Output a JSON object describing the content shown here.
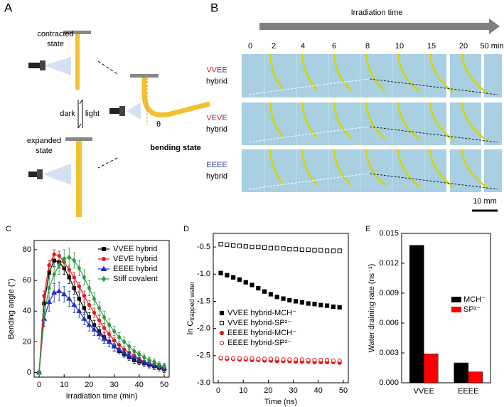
{
  "panel_a": {
    "label": "A",
    "contracted": [
      "contracted",
      "state"
    ],
    "dark": "dark",
    "light": "light",
    "expanded": [
      "expanded",
      "state"
    ],
    "theta": "θ",
    "bending": "bending state"
  },
  "panel_b": {
    "label": "B",
    "arrow_label": "Irradiation time",
    "times": [
      "0",
      "2",
      "4",
      "6",
      "8",
      "10",
      "15",
      "20",
      "50 min"
    ],
    "rows": [
      {
        "name": "VVEE",
        "sub": "hybrid"
      },
      {
        "name": "VEVE",
        "sub": "hybrid"
      },
      {
        "name": "EEEE",
        "sub": "hybrid"
      }
    ],
    "scale_bar": "10 mm"
  },
  "chart_data": [
    {
      "type": "line",
      "panel": "C",
      "xlabel": "Irradiation time (min)",
      "ylabel": "Bending angle (°)",
      "x": [
        0,
        2,
        4,
        6,
        8,
        10,
        12,
        14,
        16,
        18,
        20,
        22,
        24,
        26,
        28,
        30,
        32,
        34,
        36,
        38,
        40,
        42,
        44,
        46,
        48,
        50
      ],
      "xlim": [
        -2,
        52
      ],
      "xticks": [
        0,
        10,
        20,
        30,
        40,
        50
      ],
      "ylim": [
        -3,
        86
      ],
      "yticks": [
        0,
        20,
        40,
        60,
        80
      ],
      "legend": "upper right",
      "series": [
        {
          "name": "VVEE hybrid",
          "color": "#000000",
          "marker": "square",
          "values": [
            0,
            45,
            65,
            73,
            72,
            68,
            62,
            55,
            48,
            42,
            36,
            31,
            27,
            23,
            20,
            17,
            14,
            12,
            10,
            8,
            7,
            6,
            5,
            4,
            3,
            2
          ],
          "errors": [
            1,
            4,
            4,
            4,
            4,
            4,
            4,
            4,
            4,
            4,
            3,
            3,
            3,
            3,
            3,
            3,
            2,
            2,
            2,
            2,
            2,
            2,
            2,
            2,
            2,
            2
          ]
        },
        {
          "name": "VEVE hybrid",
          "color": "#e41a1c",
          "marker": "circle",
          "values": [
            0,
            50,
            70,
            77,
            76,
            72,
            67,
            62,
            56,
            50,
            44,
            39,
            34,
            29,
            25,
            21,
            18,
            15,
            13,
            11,
            9,
            7,
            6,
            5,
            4,
            3
          ],
          "errors": [
            1,
            3,
            3,
            3,
            3,
            3,
            3,
            3,
            3,
            3,
            3,
            3,
            3,
            3,
            2,
            2,
            2,
            2,
            2,
            2,
            2,
            2,
            2,
            2,
            2,
            2
          ]
        },
        {
          "name": "EEEE hybrid",
          "color": "#1f2fbf",
          "marker": "triangle",
          "values": [
            0,
            35,
            46,
            52,
            53,
            51,
            48,
            44,
            40,
            35,
            31,
            28,
            25,
            22,
            20,
            17,
            15,
            13,
            11,
            10,
            8,
            7,
            6,
            5,
            4,
            3
          ],
          "errors": [
            1,
            5,
            6,
            6,
            6,
            5,
            5,
            5,
            4,
            4,
            4,
            4,
            3,
            3,
            3,
            3,
            3,
            2,
            2,
            2,
            2,
            2,
            2,
            2,
            2,
            2
          ]
        },
        {
          "name": "Stiff covalent",
          "color": "#2e9a3a",
          "marker": "diamond",
          "values": [
            0,
            38,
            55,
            64,
            70,
            74,
            75,
            73,
            68,
            62,
            55,
            48,
            42,
            36,
            31,
            27,
            23,
            20,
            17,
            14,
            12,
            10,
            8,
            7,
            5,
            4
          ],
          "errors": [
            1,
            5,
            6,
            6,
            6,
            6,
            6,
            5,
            5,
            5,
            5,
            4,
            4,
            4,
            4,
            3,
            3,
            3,
            3,
            3,
            2,
            2,
            2,
            2,
            2,
            2
          ]
        }
      ]
    },
    {
      "type": "scatter",
      "panel": "D",
      "xlabel": "Time (ns)",
      "ylabel": "ln C",
      "ylabel_sub": "trapped water",
      "x": [
        1,
        3.5,
        6,
        8.5,
        11,
        13.5,
        16,
        18.5,
        21,
        23.5,
        26,
        28.5,
        31,
        33.5,
        36,
        38.5,
        41,
        43.5,
        46,
        48.5
      ],
      "xlim": [
        -2,
        52
      ],
      "xticks": [
        0,
        10,
        20,
        30,
        40,
        50
      ],
      "ylim": [
        -3,
        -0.25
      ],
      "yticks": [
        {
          "value": -3,
          "label": "-3.0"
        },
        -2.5,
        {
          "value": -2,
          "label": "-2.0"
        },
        -1.5,
        {
          "value": -1,
          "label": "-1.0"
        },
        -0.5
      ],
      "legend": "lower left",
      "series": [
        {
          "name": "VVEE hybrid-MCH⁻",
          "color": "#000000",
          "marker": "square",
          "filled": true,
          "values": [
            -0.98,
            -1.02,
            -1.06,
            -1.1,
            -1.15,
            -1.2,
            -1.26,
            -1.32,
            -1.37,
            -1.42,
            -1.45,
            -1.48,
            -1.5,
            -1.52,
            -1.54,
            -1.55,
            -1.57,
            -1.58,
            -1.6,
            -1.61
          ]
        },
        {
          "name": "VVEE hybrid-SP²⁻",
          "color": "#000000",
          "marker": "square",
          "filled": false,
          "values": [
            -0.45,
            -0.46,
            -0.47,
            -0.48,
            -0.49,
            -0.5,
            -0.5,
            -0.51,
            -0.52,
            -0.52,
            -0.53,
            -0.54,
            -0.54,
            -0.55,
            -0.55,
            -0.56,
            -0.56,
            -0.57,
            -0.57,
            -0.57
          ]
        },
        {
          "name": "EEEE hybrid-MCH⁻",
          "color": "#e41a1c",
          "marker": "circle",
          "filled": true,
          "values": [
            -2.55,
            -2.56,
            -2.56,
            -2.57,
            -2.57,
            -2.58,
            -2.58,
            -2.59,
            -2.59,
            -2.6,
            -2.6,
            -2.6,
            -2.61,
            -2.61,
            -2.61,
            -2.62,
            -2.62,
            -2.62,
            -2.62,
            -2.63
          ]
        },
        {
          "name": "EEEE hybrid-SP²⁻",
          "color": "#e41a1c",
          "marker": "circle",
          "filled": false,
          "values": [
            -2.54,
            -2.54,
            -2.55,
            -2.55,
            -2.55,
            -2.55,
            -2.56,
            -2.56,
            -2.56,
            -2.56,
            -2.57,
            -2.57,
            -2.57,
            -2.57,
            -2.58,
            -2.58,
            -2.58,
            -2.58,
            -2.59,
            -2.59
          ]
        }
      ]
    },
    {
      "type": "bar",
      "panel": "E",
      "ylabel": "Water draining rate (ns⁻¹)",
      "categories": [
        "VVEE",
        "EEEE"
      ],
      "ylim": [
        0,
        0.015
      ],
      "yticks": [
        {
          "value": 0,
          "label": "0.000"
        },
        {
          "value": 0.003,
          "label": "0.003"
        },
        {
          "value": 0.006,
          "label": "0.006"
        },
        {
          "value": 0.009,
          "label": "0.009"
        },
        {
          "value": 0.012,
          "label": "0.012"
        },
        {
          "value": 0.015,
          "label": "0.015"
        }
      ],
      "legend": "center right",
      "series": [
        {
          "name": "MCH⁻",
          "color": "#000000",
          "values": [
            0.0138,
            0.002
          ]
        },
        {
          "name": "SP²⁻",
          "color": "#ff0000",
          "values": [
            0.0029,
            0.0011
          ]
        }
      ]
    }
  ]
}
